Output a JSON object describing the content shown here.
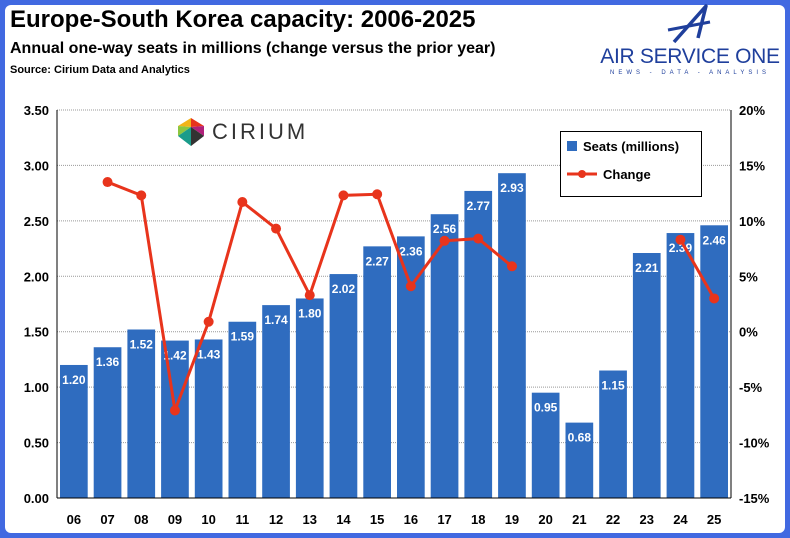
{
  "title": "Europe-South Korea capacity: 2006-2025",
  "subtitle": "Annual one-way seats in millions (change versus the prior year)",
  "source": "Source: Cirium Data and Analytics",
  "logos": {
    "air_service_one": "AIR SERVICE ONE",
    "air_service_one_tagline": "NEWS - DATA - ANALYSIS",
    "cirium": "CIRIUM"
  },
  "colors": {
    "bars": "#2f6cbf",
    "line": "#e8341c",
    "frame": "#4169e1"
  },
  "chart_data": {
    "type": "bar",
    "categories": [
      "06",
      "07",
      "08",
      "09",
      "10",
      "11",
      "12",
      "13",
      "14",
      "15",
      "16",
      "17",
      "18",
      "19",
      "20",
      "21",
      "22",
      "23",
      "24",
      "25"
    ],
    "series": [
      {
        "name": "Seats (millions)",
        "type": "bar",
        "axis": "left",
        "values": [
          1.2,
          1.36,
          1.52,
          1.42,
          1.43,
          1.59,
          1.74,
          1.8,
          2.02,
          2.27,
          2.36,
          2.56,
          2.77,
          2.93,
          0.95,
          0.68,
          1.15,
          2.21,
          2.39,
          2.46
        ],
        "labels": [
          "1.20",
          "1.36",
          "1.52",
          "1.42",
          "1.43",
          "1.59",
          "1.74",
          "1.80",
          "2.02",
          "2.27",
          "2.36",
          "2.56",
          "2.77",
          "2.93",
          "0.95",
          "0.68",
          "1.15",
          "2.21",
          "2.39",
          "2.46"
        ]
      },
      {
        "name": "Change",
        "type": "line",
        "axis": "right",
        "unit": "%",
        "values": [
          null,
          13.5,
          12.3,
          -7.1,
          0.9,
          11.7,
          9.3,
          3.3,
          12.3,
          12.4,
          4.1,
          8.2,
          8.4,
          5.9,
          null,
          null,
          null,
          null,
          8.3,
          3.0
        ]
      }
    ],
    "y_left": {
      "range": [
        0,
        3.5
      ],
      "ticks": [
        "0.00",
        "0.50",
        "1.00",
        "1.50",
        "2.00",
        "2.50",
        "3.00",
        "3.50"
      ]
    },
    "y_right": {
      "range": [
        -15,
        20
      ],
      "ticks": [
        "-15%",
        "-10%",
        "-5%",
        "0%",
        "5%",
        "10%",
        "15%",
        "20%"
      ]
    },
    "grid": true,
    "legend_position": "top-right"
  }
}
